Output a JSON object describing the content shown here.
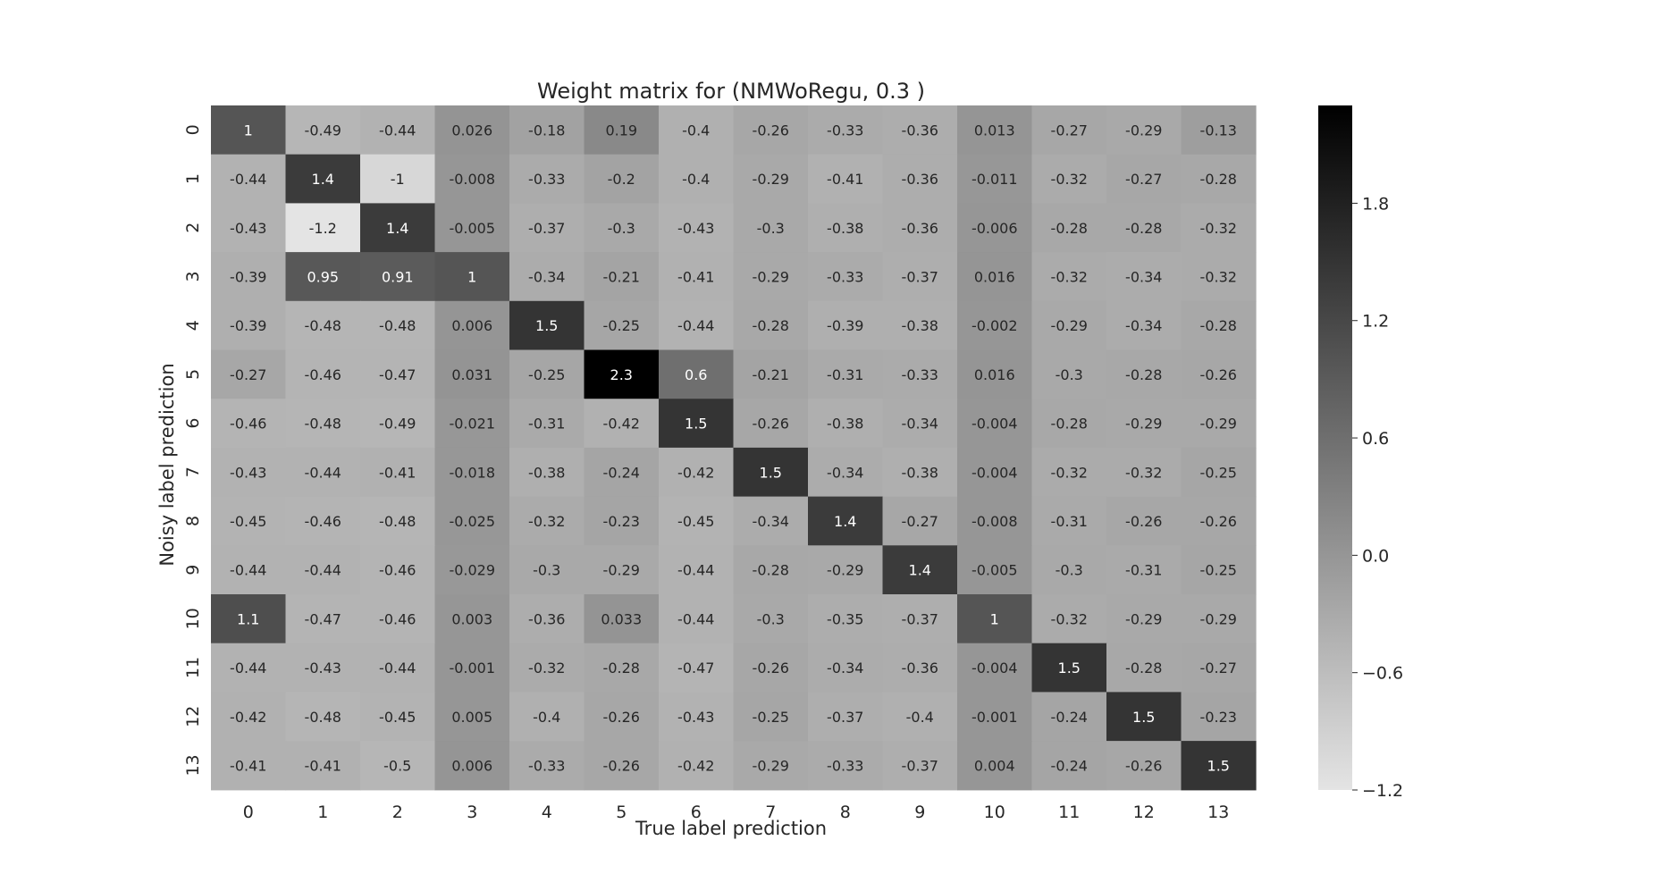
{
  "chart_data": {
    "type": "heatmap",
    "title": "Weight matrix for (NMWoRegu, 0.3 )",
    "xlabel": "True label prediction",
    "ylabel": "Noisy label prediction",
    "x_categories": [
      "0",
      "1",
      "2",
      "3",
      "4",
      "5",
      "6",
      "7",
      "8",
      "9",
      "10",
      "11",
      "12",
      "13"
    ],
    "y_categories": [
      "0",
      "1",
      "2",
      "3",
      "4",
      "5",
      "6",
      "7",
      "8",
      "9",
      "10",
      "11",
      "12",
      "13"
    ],
    "values": [
      [
        1,
        -0.49,
        -0.44,
        0.026,
        -0.18,
        0.19,
        -0.4,
        -0.26,
        -0.33,
        -0.36,
        0.013,
        -0.27,
        -0.29,
        -0.13
      ],
      [
        -0.44,
        1.4,
        -1,
        -0.008,
        -0.33,
        -0.2,
        -0.4,
        -0.29,
        -0.41,
        -0.36,
        -0.011,
        -0.32,
        -0.27,
        -0.28
      ],
      [
        -0.43,
        -1.2,
        1.4,
        -0.005,
        -0.37,
        -0.3,
        -0.43,
        -0.3,
        -0.38,
        -0.36,
        -0.006,
        -0.28,
        -0.28,
        -0.32
      ],
      [
        -0.39,
        0.95,
        0.91,
        1,
        -0.34,
        -0.21,
        -0.41,
        -0.29,
        -0.33,
        -0.37,
        0.016,
        -0.32,
        -0.34,
        -0.32
      ],
      [
        -0.39,
        -0.48,
        -0.48,
        0.006,
        1.5,
        -0.25,
        -0.44,
        -0.28,
        -0.39,
        -0.38,
        -0.002,
        -0.29,
        -0.34,
        -0.28
      ],
      [
        -0.27,
        -0.46,
        -0.47,
        0.031,
        -0.25,
        2.3,
        0.6,
        -0.21,
        -0.31,
        -0.33,
        0.016,
        -0.3,
        -0.28,
        -0.26
      ],
      [
        -0.46,
        -0.48,
        -0.49,
        -0.021,
        -0.31,
        -0.42,
        1.5,
        -0.26,
        -0.38,
        -0.34,
        -0.004,
        -0.28,
        -0.29,
        -0.29
      ],
      [
        -0.43,
        -0.44,
        -0.41,
        -0.018,
        -0.38,
        -0.24,
        -0.42,
        1.5,
        -0.34,
        -0.38,
        -0.004,
        -0.32,
        -0.32,
        -0.25
      ],
      [
        -0.45,
        -0.46,
        -0.48,
        -0.025,
        -0.32,
        -0.23,
        -0.45,
        -0.34,
        1.4,
        -0.27,
        -0.008,
        -0.31,
        -0.26,
        -0.26
      ],
      [
        -0.44,
        -0.44,
        -0.46,
        -0.029,
        -0.3,
        -0.29,
        -0.44,
        -0.28,
        -0.29,
        1.4,
        -0.005,
        -0.3,
        -0.31,
        -0.25
      ],
      [
        1.1,
        -0.47,
        -0.46,
        0.003,
        -0.36,
        0.033,
        -0.44,
        -0.3,
        -0.35,
        -0.37,
        1,
        -0.32,
        -0.29,
        -0.29
      ],
      [
        -0.44,
        -0.43,
        -0.44,
        -0.001,
        -0.32,
        -0.28,
        -0.47,
        -0.26,
        -0.34,
        -0.36,
        -0.004,
        1.5,
        -0.28,
        -0.27
      ],
      [
        -0.42,
        -0.48,
        -0.45,
        0.005,
        -0.4,
        -0.26,
        -0.43,
        -0.25,
        -0.37,
        -0.4,
        -0.001,
        -0.24,
        1.5,
        -0.23
      ],
      [
        -0.41,
        -0.41,
        -0.5,
        0.006,
        -0.33,
        -0.26,
        -0.42,
        -0.29,
        -0.33,
        -0.37,
        0.004,
        -0.24,
        -0.26,
        1.5
      ]
    ],
    "labels": [
      [
        "1",
        "-0.49",
        "-0.44",
        "0.026",
        "-0.18",
        "0.19",
        "-0.4",
        "-0.26",
        "-0.33",
        "-0.36",
        "0.013",
        "-0.27",
        "-0.29",
        "-0.13"
      ],
      [
        "-0.44",
        "1.4",
        "-1",
        "-0.008",
        "-0.33",
        "-0.2",
        "-0.4",
        "-0.29",
        "-0.41",
        "-0.36",
        "-0.011",
        "-0.32",
        "-0.27",
        "-0.28"
      ],
      [
        "-0.43",
        "-1.2",
        "1.4",
        "-0.005",
        "-0.37",
        "-0.3",
        "-0.43",
        "-0.3",
        "-0.38",
        "-0.36",
        "-0.006",
        "-0.28",
        "-0.28",
        "-0.32"
      ],
      [
        "-0.39",
        "0.95",
        "0.91",
        "1",
        "-0.34",
        "-0.21",
        "-0.41",
        "-0.29",
        "-0.33",
        "-0.37",
        "0.016",
        "-0.32",
        "-0.34",
        "-0.32"
      ],
      [
        "-0.39",
        "-0.48",
        "-0.48",
        "0.006",
        "1.5",
        "-0.25",
        "-0.44",
        "-0.28",
        "-0.39",
        "-0.38",
        "-0.002",
        "-0.29",
        "-0.34",
        "-0.28"
      ],
      [
        "-0.27",
        "-0.46",
        "-0.47",
        "0.031",
        "-0.25",
        "2.3",
        "0.6",
        "-0.21",
        "-0.31",
        "-0.33",
        "0.016",
        "-0.3",
        "-0.28",
        "-0.26"
      ],
      [
        "-0.46",
        "-0.48",
        "-0.49",
        "-0.021",
        "-0.31",
        "-0.42",
        "1.5",
        "-0.26",
        "-0.38",
        "-0.34",
        "-0.004",
        "-0.28",
        "-0.29",
        "-0.29"
      ],
      [
        "-0.43",
        "-0.44",
        "-0.41",
        "-0.018",
        "-0.38",
        "-0.24",
        "-0.42",
        "1.5",
        "-0.34",
        "-0.38",
        "-0.004",
        "-0.32",
        "-0.32",
        "-0.25"
      ],
      [
        "-0.45",
        "-0.46",
        "-0.48",
        "-0.025",
        "-0.32",
        "-0.23",
        "-0.45",
        "-0.34",
        "1.4",
        "-0.27",
        "-0.008",
        "-0.31",
        "-0.26",
        "-0.26"
      ],
      [
        "-0.44",
        "-0.44",
        "-0.46",
        "-0.029",
        "-0.3",
        "-0.29",
        "-0.44",
        "-0.28",
        "-0.29",
        "1.4",
        "-0.005",
        "-0.3",
        "-0.31",
        "-0.25"
      ],
      [
        "1.1",
        "-0.47",
        "-0.46",
        "0.003",
        "-0.36",
        "0.033",
        "-0.44",
        "-0.3",
        "-0.35",
        "-0.37",
        "1",
        "-0.32",
        "-0.29",
        "-0.29"
      ],
      [
        "-0.44",
        "-0.43",
        "-0.44",
        "-0.001",
        "-0.32",
        "-0.28",
        "-0.47",
        "-0.26",
        "-0.34",
        "-0.36",
        "-0.004",
        "1.5",
        "-0.28",
        "-0.27"
      ],
      [
        "-0.42",
        "-0.48",
        "-0.45",
        "0.005",
        "-0.4",
        "-0.26",
        "-0.43",
        "-0.25",
        "-0.37",
        "-0.4",
        "-0.001",
        "-0.24",
        "1.5",
        "-0.23"
      ],
      [
        "-0.41",
        "-0.41",
        "-0.5",
        "0.006",
        "-0.33",
        "-0.26",
        "-0.42",
        "-0.29",
        "-0.33",
        "-0.37",
        "0.004",
        "-0.24",
        "-0.26",
        "1.5"
      ]
    ],
    "colorbar": {
      "range": [
        -1.2,
        2.3
      ],
      "ticks": [
        1.8,
        1.2,
        0.6,
        0.0,
        -0.6,
        -1.2
      ],
      "tick_labels": [
        "1.8",
        "1.2",
        "0.6",
        "0.0",
        "−0.6",
        "−1.2"
      ],
      "colormap": "grays",
      "color_low": "#e4e4e4",
      "color_high": "#000000"
    }
  }
}
